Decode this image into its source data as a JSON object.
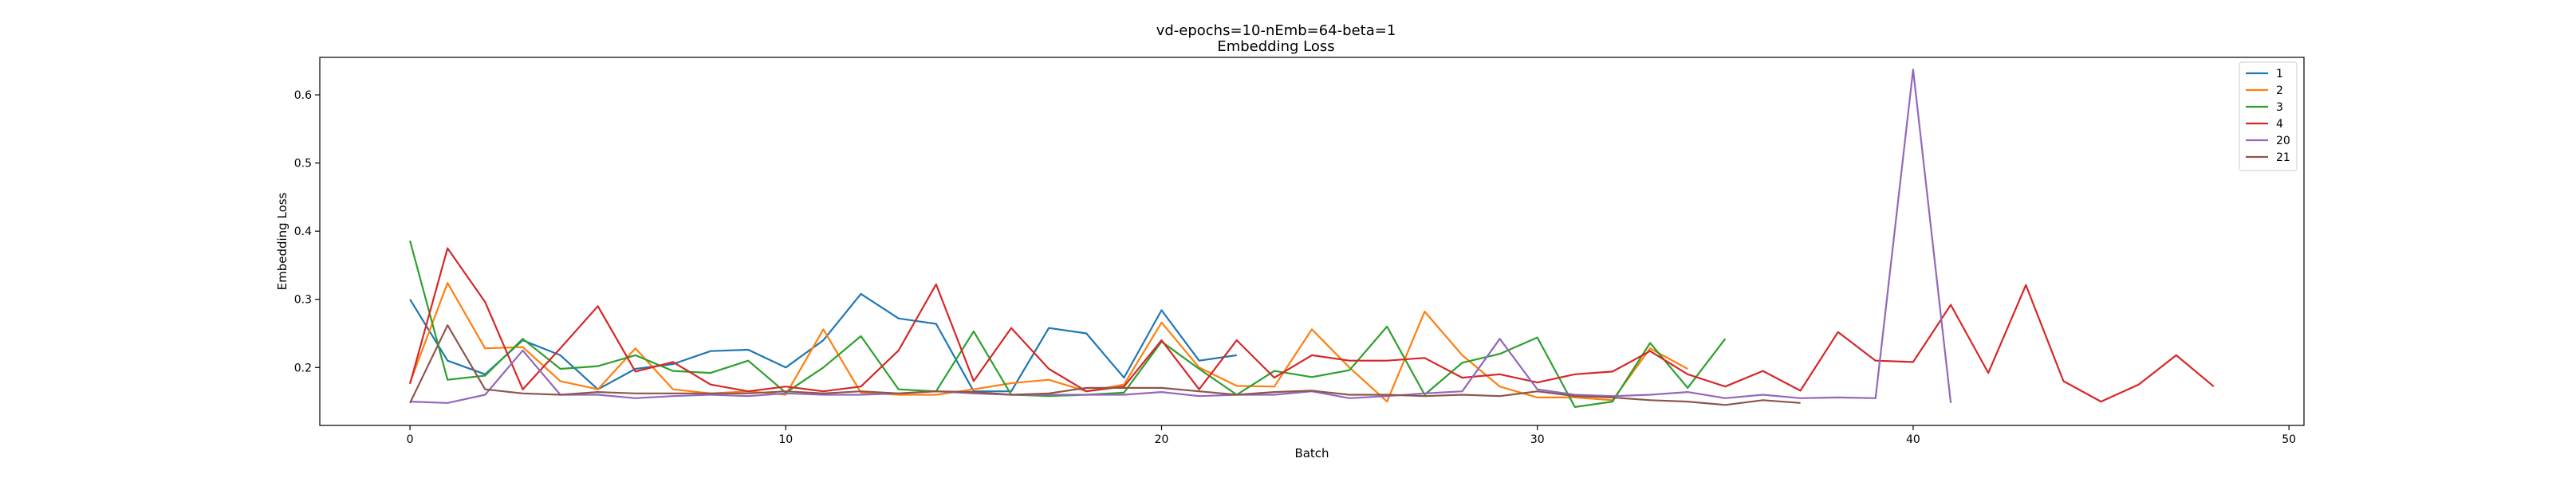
{
  "chart_data": {
    "type": "line",
    "title": "vd-epochs=10-nEmb=64-beta=1",
    "subtitle": "Embedding Loss",
    "xlabel": "Batch",
    "ylabel": "Embedding Loss",
    "xlim": [
      -2.4,
      50.4
    ],
    "ylim": [
      0.115,
      0.655
    ],
    "xticks": [
      0,
      10,
      20,
      30,
      40,
      50
    ],
    "yticks": [
      0.2,
      0.3,
      0.4,
      0.5,
      0.6
    ],
    "grid": false,
    "legend": "top-right",
    "series": [
      {
        "name": "1",
        "color": "#1f77b4",
        "values": [
          0.3,
          0.21,
          0.19,
          0.24,
          0.218,
          0.168,
          0.198,
          0.205,
          0.224,
          0.226,
          0.2,
          0.24,
          0.308,
          0.272,
          0.264,
          0.165,
          0.165,
          0.258,
          0.25,
          0.185,
          0.284,
          0.21,
          0.218
        ]
      },
      {
        "name": "2",
        "color": "#ff7f0e",
        "values": [
          0.178,
          0.324,
          0.228,
          0.23,
          0.18,
          0.168,
          0.228,
          0.168,
          0.162,
          0.165,
          0.16,
          0.256,
          0.163,
          0.16,
          0.16,
          0.168,
          0.177,
          0.182,
          0.165,
          0.175,
          0.266,
          0.2,
          0.173,
          0.172,
          0.256,
          0.2,
          0.15,
          0.282,
          0.218,
          0.172,
          0.156,
          0.156,
          0.152,
          0.228,
          0.198
        ]
      },
      {
        "name": "3",
        "color": "#2ca02c",
        "values": [
          0.386,
          0.182,
          0.188,
          0.242,
          0.198,
          0.202,
          0.218,
          0.195,
          0.192,
          0.21,
          0.163,
          0.2,
          0.246,
          0.168,
          0.165,
          0.253,
          0.16,
          0.158,
          0.16,
          0.163,
          0.238,
          0.198,
          0.16,
          0.195,
          0.186,
          0.196,
          0.26,
          0.16,
          0.207,
          0.22,
          0.244,
          0.142,
          0.15,
          0.236,
          0.17,
          0.242
        ]
      },
      {
        "name": "4",
        "color": "#d62728",
        "values": [
          0.176,
          0.375,
          0.296,
          0.168,
          0.228,
          0.29,
          0.194,
          0.208,
          0.175,
          0.165,
          0.172,
          0.165,
          0.172,
          0.225,
          0.322,
          0.18,
          0.258,
          0.198,
          0.165,
          0.172,
          0.24,
          0.168,
          0.24,
          0.185,
          0.218,
          0.21,
          0.21,
          0.214,
          0.185,
          0.19,
          0.178,
          0.19,
          0.194,
          0.224,
          0.19,
          0.172,
          0.195,
          0.166,
          0.252,
          0.21,
          0.208,
          0.292,
          0.192,
          0.321,
          0.18,
          0.15,
          0.175,
          0.218,
          0.172
        ]
      },
      {
        "name": "20",
        "color": "#9467bd",
        "values": [
          0.15,
          0.148,
          0.16,
          0.225,
          0.16,
          0.16,
          0.155,
          0.158,
          0.16,
          0.158,
          0.162,
          0.16,
          0.16,
          0.162,
          0.165,
          0.162,
          0.16,
          0.16,
          0.16,
          0.16,
          0.164,
          0.158,
          0.16,
          0.16,
          0.165,
          0.155,
          0.158,
          0.162,
          0.165,
          0.242,
          0.168,
          0.16,
          0.158,
          0.16,
          0.164,
          0.155,
          0.16,
          0.155,
          0.156,
          0.155,
          0.637,
          0.148
        ]
      },
      {
        "name": "21",
        "color": "#8c564b",
        "values": [
          0.148,
          0.262,
          0.168,
          0.162,
          0.16,
          0.164,
          0.162,
          0.162,
          0.162,
          0.162,
          0.165,
          0.162,
          0.165,
          0.162,
          0.165,
          0.164,
          0.16,
          0.162,
          0.17,
          0.17,
          0.17,
          0.165,
          0.16,
          0.164,
          0.166,
          0.16,
          0.16,
          0.158,
          0.16,
          0.158,
          0.165,
          0.158,
          0.156,
          0.152,
          0.15,
          0.145,
          0.152,
          0.148
        ]
      }
    ]
  }
}
